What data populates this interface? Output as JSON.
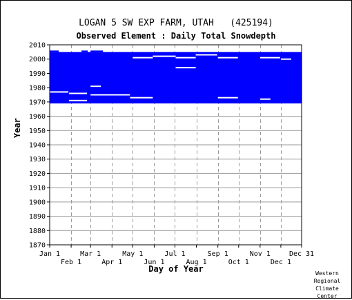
{
  "title": "LOGAN 5 SW EXP FARM, UTAH   (425194)",
  "subtitle": "Observed Element : Daily Total Snowdepth",
  "credit": [
    "Western",
    "Regional",
    "Climate",
    "Center"
  ],
  "chart_data": {
    "type": "heatmap",
    "title": "LOGAN 5 SW EXP FARM, UTAH   (425194)",
    "subtitle": "Observed Element : Daily Total Snowdepth",
    "xlabel": "Day of Year",
    "ylabel": "Year",
    "ylim": [
      1870,
      2010
    ],
    "xlim": [
      1,
      365
    ],
    "y_ticks": [
      1870,
      1880,
      1890,
      1900,
      1910,
      1920,
      1930,
      1940,
      1950,
      1960,
      1970,
      1980,
      1990,
      2000,
      2010
    ],
    "x_ticks_upper": [
      {
        "label": "Jan 1",
        "day": 1
      },
      {
        "label": "Mar 1",
        "day": 60
      },
      {
        "label": "May 1",
        "day": 121
      },
      {
        "label": "Jul 1",
        "day": 182
      },
      {
        "label": "Sep 1",
        "day": 244
      },
      {
        "label": "Nov 1",
        "day": 305
      },
      {
        "label": "Dec 31",
        "day": 365
      }
    ],
    "x_ticks_lower": [
      {
        "label": "Feb 1",
        "day": 32
      },
      {
        "label": "Apr 1",
        "day": 91
      },
      {
        "label": "Jun 1",
        "day": 152
      },
      {
        "label": "Aug 1",
        "day": 213
      },
      {
        "label": "Oct 1",
        "day": 274
      },
      {
        "label": "Dec 1",
        "day": 335
      }
    ],
    "grid": true,
    "fill_color": "#0000ff",
    "coverage": [
      {
        "day_start": 1,
        "day_end": 365,
        "year_start": 1969,
        "year_end": 2005
      },
      {
        "day_start": 1,
        "day_end": 14,
        "year_start": 2005,
        "year_end": 2006
      },
      {
        "day_start": 47,
        "day_end": 56,
        "year_start": 2005,
        "year_end": 2006
      },
      {
        "day_start": 60,
        "day_end": 78,
        "year_start": 2005,
        "year_end": 2006
      }
    ],
    "missing": [
      {
        "day_start": 1,
        "day_end": 28,
        "year": 1977
      },
      {
        "day_start": 29,
        "day_end": 55,
        "year": 1971
      },
      {
        "day_start": 29,
        "day_end": 55,
        "year": 1976
      },
      {
        "day_start": 60,
        "day_end": 75,
        "year": 1981
      },
      {
        "day_start": 60,
        "day_end": 117,
        "year": 1975
      },
      {
        "day_start": 117,
        "day_end": 150,
        "year": 1973
      },
      {
        "day_start": 121,
        "day_end": 150,
        "year": 2001
      },
      {
        "day_start": 150,
        "day_end": 183,
        "year": 2002
      },
      {
        "day_start": 183,
        "day_end": 212,
        "year": 2001
      },
      {
        "day_start": 183,
        "day_end": 212,
        "year": 1994
      },
      {
        "day_start": 212,
        "day_end": 243,
        "year": 2003
      },
      {
        "day_start": 244,
        "day_end": 273,
        "year": 2001
      },
      {
        "day_start": 244,
        "day_end": 273,
        "year": 1973
      },
      {
        "day_start": 305,
        "day_end": 334,
        "year": 2001
      },
      {
        "day_start": 305,
        "day_end": 320,
        "year": 1972
      },
      {
        "day_start": 335,
        "day_end": 350,
        "year": 2000
      }
    ]
  }
}
